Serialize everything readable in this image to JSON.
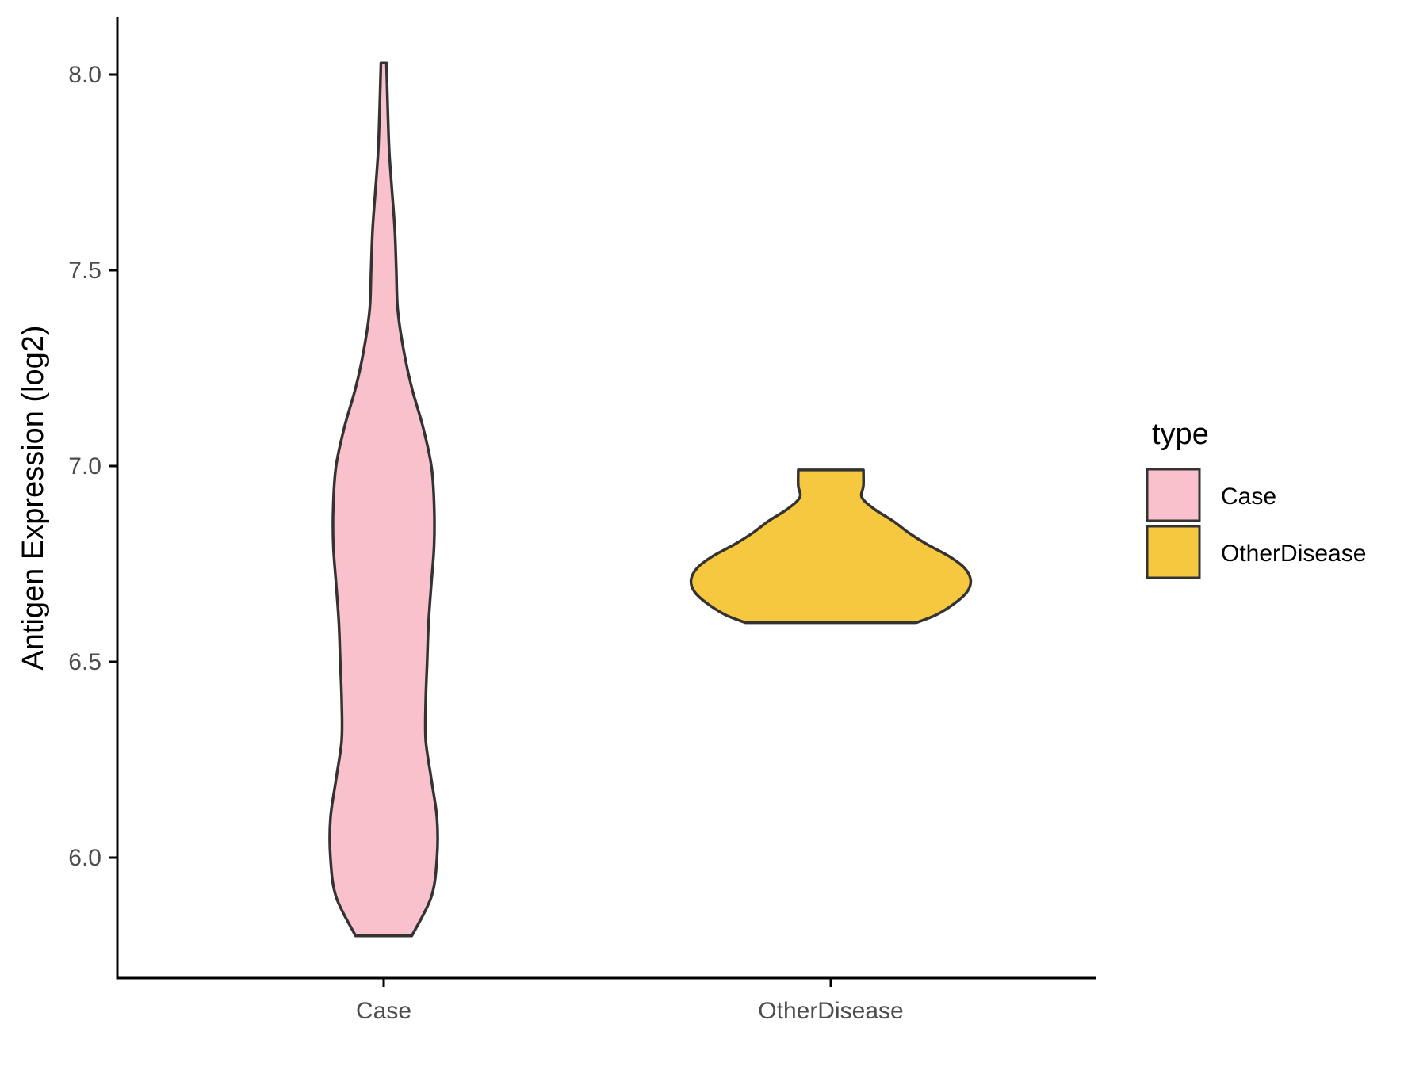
{
  "chart_data": {
    "type": "violin",
    "title": "",
    "xlabel": "",
    "ylabel": "Antigen Expression (log2)",
    "ylim": [
      5.7,
      8.15
    ],
    "yticks": [
      6.0,
      6.5,
      7.0,
      7.5,
      8.0
    ],
    "ytick_labels": [
      "6.0",
      "6.5",
      "7.0",
      "7.5",
      "8.0"
    ],
    "categories": [
      "Case",
      "OtherDisease"
    ],
    "grid": false,
    "legend": {
      "title": "type",
      "position": "right",
      "entries": [
        "Case",
        "OtherDisease"
      ]
    },
    "series": [
      {
        "category": "Case",
        "name": "Case",
        "color": "#F8C1CC",
        "min": 5.8,
        "max": 8.03,
        "density_profile": [
          [
            5.8,
            0.1
          ],
          [
            5.9,
            0.17
          ],
          [
            6.0,
            0.19
          ],
          [
            6.1,
            0.19
          ],
          [
            6.2,
            0.17
          ],
          [
            6.3,
            0.15
          ],
          [
            6.4,
            0.15
          ],
          [
            6.5,
            0.155
          ],
          [
            6.6,
            0.16
          ],
          [
            6.7,
            0.17
          ],
          [
            6.8,
            0.18
          ],
          [
            6.9,
            0.18
          ],
          [
            7.0,
            0.17
          ],
          [
            7.1,
            0.14
          ],
          [
            7.2,
            0.1
          ],
          [
            7.3,
            0.07
          ],
          [
            7.4,
            0.05
          ],
          [
            7.5,
            0.045
          ],
          [
            7.6,
            0.04
          ],
          [
            7.7,
            0.03
          ],
          [
            7.8,
            0.02
          ],
          [
            7.9,
            0.015
          ],
          [
            8.03,
            0.01
          ]
        ]
      },
      {
        "category": "OtherDisease",
        "name": "OtherDisease",
        "color": "#F6C83F",
        "min": 6.6,
        "max": 6.99,
        "density_profile": [
          [
            6.6,
            0.55
          ],
          [
            6.62,
            0.68
          ],
          [
            6.65,
            0.8
          ],
          [
            6.68,
            0.88
          ],
          [
            6.71,
            0.9
          ],
          [
            6.74,
            0.86
          ],
          [
            6.77,
            0.76
          ],
          [
            6.8,
            0.62
          ],
          [
            6.83,
            0.5
          ],
          [
            6.86,
            0.4
          ],
          [
            6.89,
            0.28
          ],
          [
            6.92,
            0.2
          ],
          [
            6.95,
            0.21
          ],
          [
            6.99,
            0.21
          ]
        ]
      }
    ]
  }
}
